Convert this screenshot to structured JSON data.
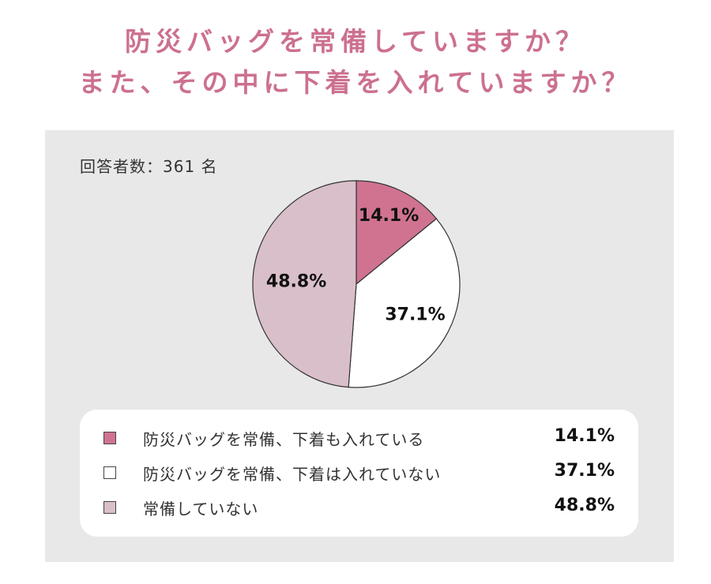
{
  "title": {
    "line1": "防災バッグを常備していますか？",
    "line2": "また、その中に下着を入れていますか？"
  },
  "respondents": "回答者数：361 名",
  "chart_data": {
    "type": "pie",
    "title": "防災バッグを常備していますか？ また、その中に下着を入れていますか？",
    "slices": [
      {
        "label": "防災バッグを常備、下着も入れている",
        "value": 14.1,
        "display": "14.1%",
        "color": "#cf7390"
      },
      {
        "label": "防災バッグを常備、下着は入れていない",
        "value": 37.1,
        "display": "37.1%",
        "color": "#ffffff"
      },
      {
        "label": "常備していない",
        "value": 48.8,
        "display": "48.8%",
        "color": "#d9bfca"
      }
    ],
    "start": "12 o'clock",
    "direction": "clockwise"
  },
  "colors": {
    "title": "#cc7090",
    "panel_background": "#e8e8e8",
    "slice_outline": "#333333"
  }
}
